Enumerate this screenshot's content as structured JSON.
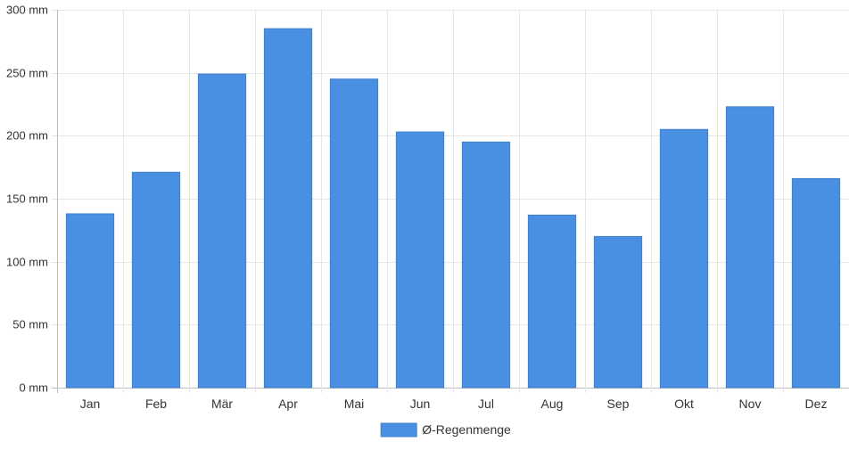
{
  "chart_data": {
    "type": "bar",
    "title": "",
    "xlabel": "",
    "ylabel": "",
    "categories": [
      "Jan",
      "Feb",
      "Mär",
      "Apr",
      "Mai",
      "Jun",
      "Jul",
      "Aug",
      "Sep",
      "Okt",
      "Nov",
      "Dez"
    ],
    "series": [
      {
        "name": "Ø-Regenmenge",
        "values": [
          138,
          171,
          249,
          285,
          245,
          203,
          195,
          137,
          120,
          205,
          223,
          166
        ]
      }
    ],
    "ylim": [
      0,
      300
    ],
    "yticks": [
      0,
      50,
      100,
      150,
      200,
      250,
      300
    ],
    "ytick_labels": [
      "0 mm",
      "50 mm",
      "100 mm",
      "150 mm",
      "200 mm",
      "250 mm",
      "300 mm"
    ],
    "grid": true,
    "legend_position": "bottom-center",
    "colors": {
      "bar": "#4a90e2",
      "bar_border": "#3f80cc",
      "grid": "#e6e6e6",
      "axis": "#bdbdbd",
      "text": "#333333"
    }
  }
}
